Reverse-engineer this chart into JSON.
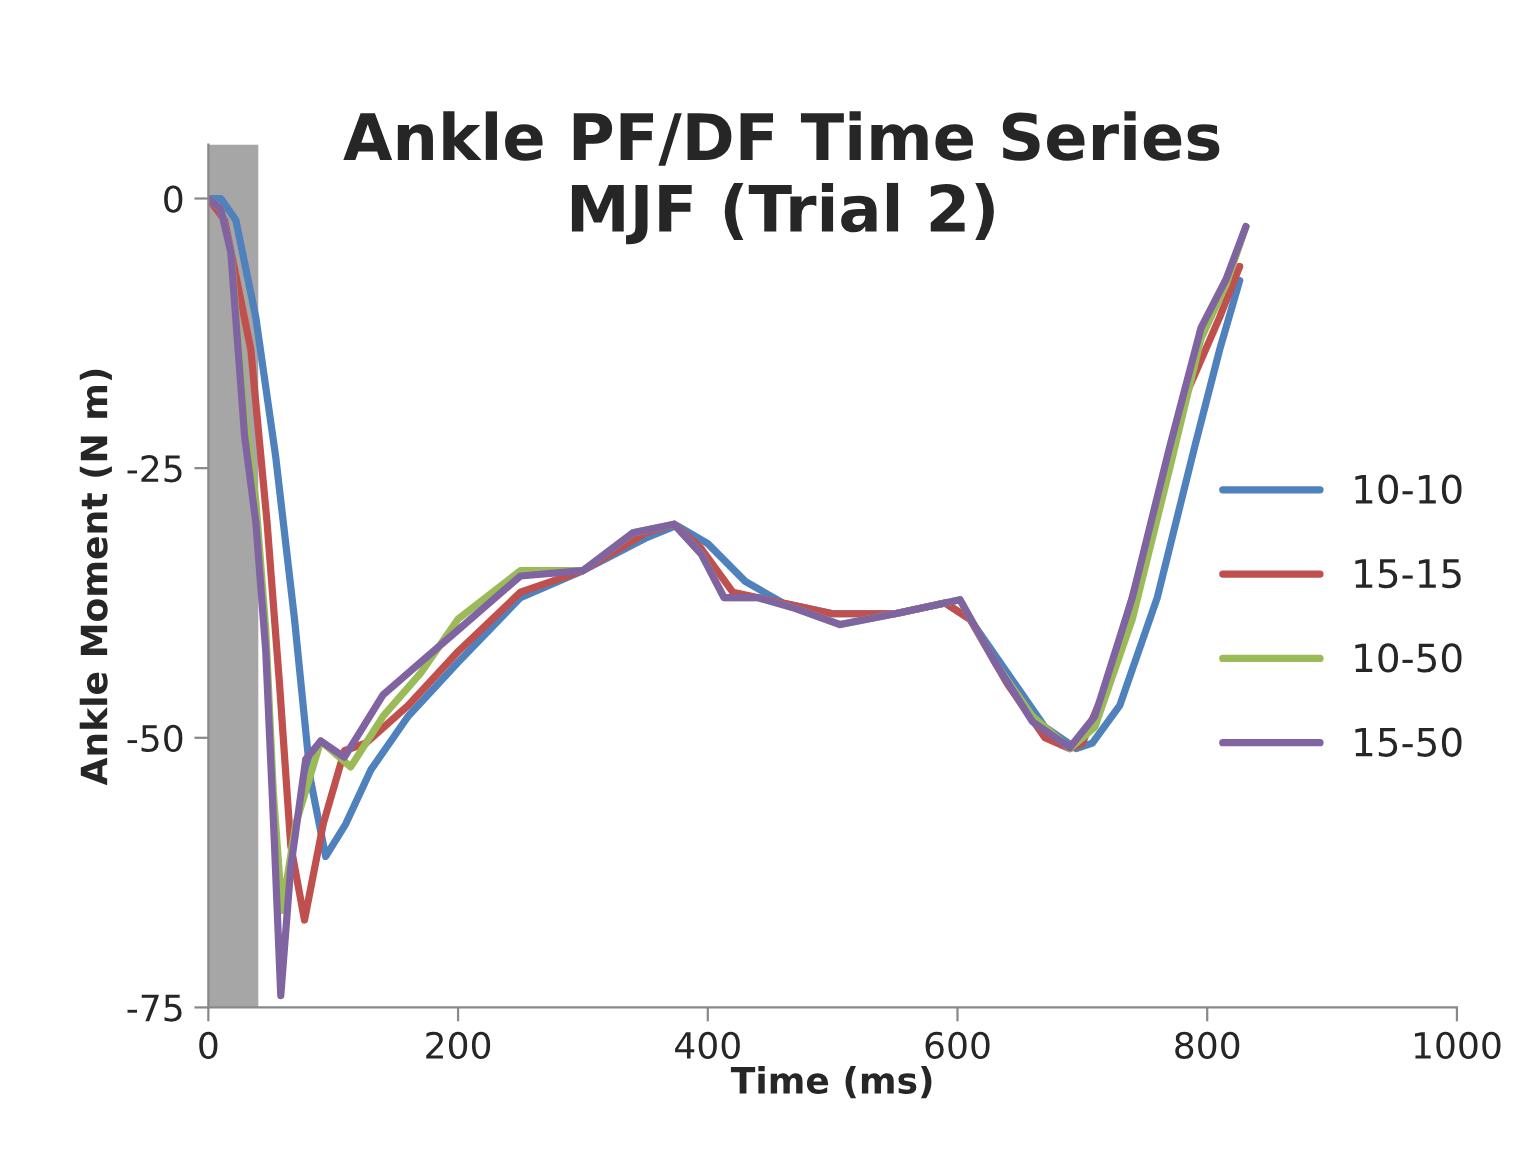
{
  "chart_data": {
    "type": "line",
    "title": "Ankle PF/DF Time Series\nMJF (Trial 2)",
    "xlabel": "Time (ms)",
    "ylabel": "Ankle Moment (N m)",
    "xlim": [
      0,
      1000
    ],
    "xticks": [
      0,
      200,
      400,
      600,
      800,
      1000
    ],
    "ylim": [
      -75,
      5
    ],
    "yticks": [
      -75,
      -50,
      -25,
      0
    ],
    "grid": false,
    "legend": "right",
    "marker": "none",
    "line_style": "solid",
    "bands": [
      {
        "axis": "x",
        "from": 0,
        "to": 40,
        "label": null,
        "color": "#a6a6a6"
      }
    ],
    "series": [
      {
        "name": "10-10",
        "color": "#4f81bd",
        "x": [
          0,
          10,
          22,
          38,
          54,
          69,
          82,
          94,
          110,
          130,
          160,
          200,
          250,
          300,
          350,
          375,
          400,
          430,
          460,
          500,
          550,
          590,
          610,
          640,
          670,
          695,
          708,
          730,
          760,
          790,
          810,
          826
        ],
        "values": [
          0,
          0,
          -2,
          -11,
          -24,
          -39,
          -54,
          -61,
          -58,
          -53,
          -48,
          -43,
          -37,
          -34.5,
          -31.5,
          -30.3,
          -32,
          -35.5,
          -37.5,
          -38.5,
          -38.5,
          -37.5,
          -39,
          -44,
          -49,
          -51,
          -50.5,
          -47,
          -37,
          -23,
          -14,
          -7.6
        ]
      },
      {
        "name": "15-15",
        "color": "#c0504d",
        "x": [
          0,
          13,
          34,
          47,
          57,
          66,
          77,
          92,
          109,
          126,
          160,
          200,
          250,
          300,
          350,
          373,
          395,
          420,
          460,
          500,
          550,
          590,
          610,
          640,
          670,
          690,
          700,
          720,
          750,
          780,
          810,
          826
        ],
        "values": [
          0,
          -2,
          -14,
          -30,
          -45,
          -60,
          -66.9,
          -58,
          -51.2,
          -50.5,
          -47,
          -42,
          -36.5,
          -34.5,
          -31,
          -30.2,
          -32.5,
          -36.5,
          -37.5,
          -38.5,
          -38.5,
          -37.5,
          -39,
          -45,
          -50,
          -51,
          -50.5,
          -45,
          -33,
          -19,
          -11,
          -6.3
        ]
      },
      {
        "name": "10-50",
        "color": "#9bbb59",
        "x": [
          0,
          10,
          18,
          29,
          38,
          46,
          52,
          59,
          70,
          90,
          114,
          140,
          170,
          200,
          250,
          300,
          340,
          373,
          395,
          413,
          440,
          470,
          506,
          550,
          590,
          602,
          630,
          660,
          690,
          710,
          740,
          770,
          795,
          815,
          831
        ],
        "values": [
          0,
          -1,
          -5,
          -20,
          -28,
          -40,
          -55,
          -66,
          -58,
          -50.3,
          -52.7,
          -48,
          -44,
          -39,
          -34.5,
          -34.5,
          -31,
          -30.2,
          -33,
          -37,
          -37,
          -38,
          -39.5,
          -38.5,
          -37.5,
          -37.2,
          -43,
          -48,
          -51,
          -49,
          -39,
          -25,
          -13,
          -8,
          -2.6
        ]
      },
      {
        "name": "15-50",
        "color": "#8064a2",
        "x": [
          0,
          10,
          18,
          29,
          38,
          46,
          53,
          58,
          66,
          78,
          90,
          109,
          140,
          170,
          200,
          250,
          300,
          340,
          373,
          395,
          413,
          440,
          470,
          506,
          550,
          590,
          602,
          630,
          660,
          690,
          710,
          740,
          770,
          795,
          815,
          831
        ],
        "values": [
          0,
          -1,
          -5,
          -22,
          -30,
          -42,
          -60,
          -73.9,
          -62,
          -52,
          -50.3,
          -51.8,
          -46,
          -43,
          -40,
          -35,
          -34.5,
          -31,
          -30.2,
          -33,
          -37,
          -37,
          -38,
          -39.5,
          -38.5,
          -37.5,
          -37.2,
          -43,
          -48.5,
          -50.9,
          -48,
          -37,
          -23,
          -12,
          -7.5,
          -2.6
        ]
      }
    ]
  }
}
